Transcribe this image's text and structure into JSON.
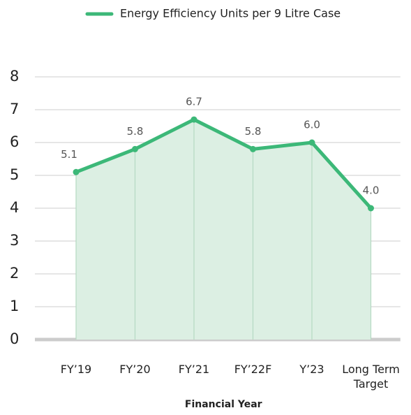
{
  "chart_data": {
    "type": "line",
    "x_label": "Financial Year",
    "categories": [
      "FY’19",
      "FY’20",
      "FY’21",
      "FY’22F",
      "Y’23",
      "Long Term Target"
    ],
    "series": [
      {
        "name": "Energy Efficiency Units per 9 Litre Case",
        "color": "#3cb878",
        "values": [
          5.1,
          5.8,
          6.7,
          5.8,
          6.0,
          4.0
        ],
        "value_labels": [
          "5.1",
          "5.8",
          "6.7",
          "5.8",
          "6.0",
          "4.0"
        ]
      }
    ],
    "area_fill": "#dcefe3",
    "ylim": [
      0,
      8
    ],
    "yticks": [
      0,
      1,
      2,
      3,
      4,
      5,
      6,
      7,
      8
    ],
    "grid": true,
    "legend": "top"
  }
}
